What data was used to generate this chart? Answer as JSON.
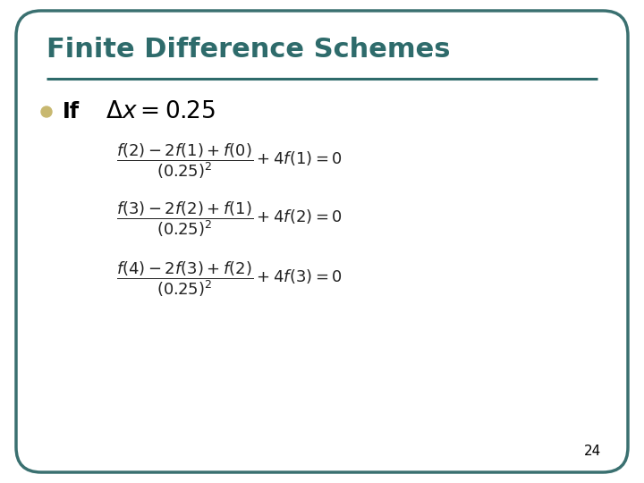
{
  "title": "Finite Difference Schemes",
  "title_color": "#2E6B6B",
  "title_fontsize": 22,
  "background_color": "#FFFFFF",
  "border_color": "#3A7070",
  "line_color": "#2E6B6B",
  "bullet_color": "#C8B870",
  "page_number": "24",
  "eq_color": "#222222",
  "eq_fontsize": 13
}
